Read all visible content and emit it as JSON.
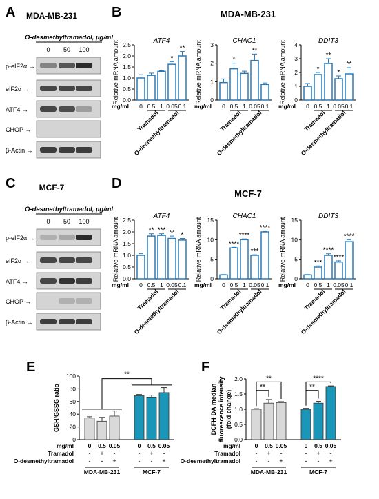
{
  "colors": {
    "bar_blue": "#2a7ab8",
    "bar_gray": "#d9d9d9",
    "bar_teal": "#1a96b8",
    "blot_bg": "#d4d4d4",
    "band": "#222222"
  },
  "panel_letters": {
    "A": "A",
    "B": "B",
    "C": "C",
    "D": "D",
    "E": "E",
    "F": "F"
  },
  "panelA": {
    "cell_line": "MDA-MB-231",
    "treatment": "O-desmethyltramadol, µg/ml",
    "doses": [
      "0",
      "50",
      "100"
    ],
    "proteins": [
      "p-eIF2α",
      "eIF2α",
      "ATF4",
      "CHOP",
      "β-Actin"
    ],
    "intensities": [
      [
        0.45,
        0.7,
        0.95
      ],
      [
        0.8,
        0.8,
        0.8
      ],
      [
        0.8,
        0.75,
        0.3
      ],
      [
        0.05,
        0.05,
        0.05
      ],
      [
        0.85,
        0.85,
        0.85
      ]
    ]
  },
  "panelC": {
    "cell_line": "MCF-7",
    "treatment": "O-desmethyltramadol, µg/ml",
    "doses": [
      "0",
      "50",
      "100"
    ],
    "proteins": [
      "p-eIF2α",
      "eIF2α",
      "ATF4",
      "CHOP",
      "β-Actin"
    ],
    "intensities": [
      [
        0.2,
        0.25,
        0.95
      ],
      [
        0.8,
        0.8,
        0.8
      ],
      [
        0.8,
        0.9,
        0.85
      ],
      [
        0.05,
        0.2,
        0.2
      ],
      [
        0.85,
        0.85,
        0.85
      ]
    ]
  },
  "panelB_title": "MDA-MB-231",
  "panelD_title": "MCF-7",
  "qpcr": {
    "ylabel": "Relative mRNA amount",
    "unit_label": "mg/ml",
    "dose_labels": [
      "0",
      "0.5",
      "1",
      "0.05",
      "0.1"
    ],
    "group1": "Tramadol",
    "group2": "O-desmethyltramadol"
  },
  "panelE": {
    "ylabel": "GSH/GSSG ratio",
    "unit_label": "mg/ml",
    "dose_labels": [
      "0",
      "0.5",
      "0.05"
    ],
    "row_tramadol": "Tramadol",
    "row_odmt": "O-desmethyltramadol",
    "signs_tramadol": [
      "-",
      "+",
      "-"
    ],
    "signs_odmt": [
      "-",
      "-",
      "+"
    ],
    "groups": [
      "MDA-MB-231",
      "MCF-7"
    ],
    "sig": "**"
  },
  "panelF": {
    "ylabel": [
      "DCFH-DA median",
      "fluorescence intensity",
      "(fold change)"
    ],
    "unit_label": "mg/ml",
    "dose_labels": [
      "0",
      "0.5",
      "0.05"
    ],
    "row_tramadol": "Tramadol",
    "row_odmt": "O-desmethyltramadol",
    "signs_tramadol": [
      "-",
      "+",
      "-"
    ],
    "signs_odmt": [
      "-",
      "-",
      "+"
    ],
    "groups": [
      "MDA-MB-231",
      "MCF-7"
    ]
  },
  "chart_data": [
    {
      "type": "bar",
      "panel": "B",
      "title": "ATF4",
      "ylabel": "Relative mRNA amount",
      "categories": [
        "0",
        "0.5",
        "1",
        "0.05",
        "0.1"
      ],
      "values": [
        1.0,
        1.12,
        1.3,
        1.62,
        2.0
      ],
      "errors": [
        0.15,
        0.1,
        0.03,
        0.12,
        0.2
      ],
      "sig": [
        "",
        "",
        "",
        "*",
        "**"
      ],
      "ylim": [
        0,
        2.5
      ],
      "ticks": [
        "0.0",
        "0.5",
        "1.0",
        "1.5",
        "2.0",
        "2.5"
      ]
    },
    {
      "type": "bar",
      "panel": "B",
      "title": "CHAC1",
      "ylabel": "Relative mRNA amount",
      "categories": [
        "0",
        "0.5",
        "1",
        "0.05",
        "0.1"
      ],
      "values": [
        0.95,
        1.7,
        1.45,
        2.15,
        0.85
      ],
      "errors": [
        0.2,
        0.3,
        0.12,
        0.35,
        0.08
      ],
      "sig": [
        "",
        "*",
        "",
        "**",
        ""
      ],
      "ylim": [
        0,
        3
      ],
      "ticks": [
        "0",
        "1",
        "2",
        "3"
      ]
    },
    {
      "type": "bar",
      "panel": "B",
      "title": "DDIT3",
      "ylabel": "Relative mRNA amount",
      "categories": [
        "0",
        "0.5",
        "1",
        "0.05",
        "0.1"
      ],
      "values": [
        1.0,
        1.85,
        2.65,
        1.55,
        1.9
      ],
      "errors": [
        0.2,
        0.15,
        0.35,
        0.2,
        0.45
      ],
      "sig": [
        "",
        "*",
        "**",
        "*",
        "**"
      ],
      "ylim": [
        0,
        4
      ],
      "ticks": [
        "0",
        "1",
        "2",
        "3",
        "4"
      ]
    },
    {
      "type": "bar",
      "panel": "D",
      "title": "ATF4",
      "ylabel": "Relative mRNA amount",
      "categories": [
        "0",
        "0.5",
        "1",
        "0.05",
        "0.1"
      ],
      "values": [
        1.0,
        1.82,
        1.85,
        1.72,
        1.65
      ],
      "errors": [
        0.07,
        0.1,
        0.07,
        0.1,
        0.07
      ],
      "sig": [
        "",
        "**",
        "***",
        "**",
        "*"
      ],
      "ylim": [
        0,
        2.5
      ],
      "ticks": [
        "0.0",
        "0.5",
        "1.0",
        "1.5",
        "2.0",
        "2.5"
      ]
    },
    {
      "type": "bar",
      "panel": "D",
      "title": "CHAC1",
      "ylabel": "Relative mRNA amount",
      "categories": [
        "0",
        "0.5",
        "1",
        "0.05",
        "0.1"
      ],
      "values": [
        1.0,
        7.9,
        10.0,
        6.0,
        12.0
      ],
      "errors": [
        0.1,
        0.15,
        0.2,
        0.15,
        0.15
      ],
      "sig": [
        "",
        "****",
        "****",
        "***",
        "****"
      ],
      "ylim": [
        0,
        15
      ],
      "ticks": [
        "0",
        "5",
        "10",
        "15"
      ]
    },
    {
      "type": "bar",
      "panel": "D",
      "title": "DDIT3",
      "ylabel": "Relative mRNA amount",
      "categories": [
        "0",
        "0.5",
        "1",
        "0.05",
        "0.1"
      ],
      "values": [
        1.0,
        3.0,
        6.0,
        4.3,
        9.5
      ],
      "errors": [
        0.1,
        0.3,
        0.4,
        0.3,
        0.5
      ],
      "sig": [
        "",
        "***",
        "****",
        "****",
        "****"
      ],
      "ylim": [
        0,
        15
      ],
      "ticks": [
        "0",
        "5",
        "10",
        "15"
      ]
    },
    {
      "type": "bar",
      "panel": "E",
      "ylabel": "GSH/GSSG ratio",
      "categories": [
        "0",
        "0.5",
        "0.05",
        "0",
        "0.5",
        "0.05"
      ],
      "groups": [
        "MDA-MB-231",
        "MDA-MB-231",
        "MDA-MB-231",
        "MCF-7",
        "MCF-7",
        "MCF-7"
      ],
      "values": [
        34,
        29,
        37,
        69,
        67,
        74
      ],
      "errors": [
        2,
        6,
        8,
        2,
        3,
        8
      ],
      "ylim": [
        0,
        100
      ],
      "ticks": [
        "0",
        "20",
        "40",
        "60",
        "80",
        "100"
      ]
    },
    {
      "type": "bar",
      "panel": "F",
      "ylabel": "DCFH-DA median fluorescence intensity (fold change)",
      "categories": [
        "0",
        "0.5",
        "0.05",
        "0",
        "0.5",
        "0.05"
      ],
      "groups": [
        "MDA-MB-231",
        "MDA-MB-231",
        "MDA-MB-231",
        "MCF-7",
        "MCF-7",
        "MCF-7"
      ],
      "values": [
        1.0,
        1.2,
        1.22,
        1.0,
        1.2,
        1.75
      ],
      "errors": [
        0.02,
        0.12,
        0.03,
        0.03,
        0.06,
        0.02
      ],
      "ylim": [
        0,
        2.0
      ],
      "ticks": [
        "0.0",
        "0.5",
        "1.0",
        "1.5",
        "2.0"
      ],
      "sig_pairs": [
        {
          "from": 0,
          "to": 1,
          "label": "**"
        },
        {
          "from": 0,
          "to": 2,
          "label": "**"
        },
        {
          "from": 3,
          "to": 4,
          "label": "**"
        },
        {
          "from": 3,
          "to": 5,
          "label": "****"
        }
      ]
    }
  ]
}
